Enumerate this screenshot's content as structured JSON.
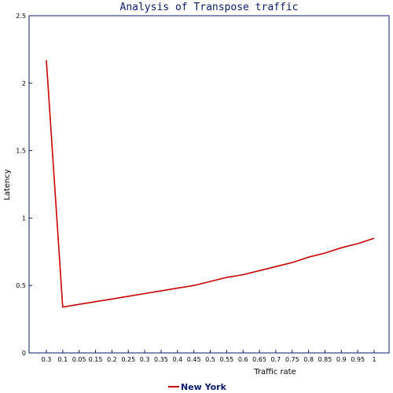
{
  "chart_data": {
    "type": "line",
    "title": "Analysis of Transpose traffic",
    "xlabel": "Traffic rate",
    "ylabel": "Latency",
    "x_ticks": [
      "0.3",
      "0.1",
      "0.05",
      "0.15",
      "0.2",
      "0.25",
      "0.3",
      "0.35",
      "0.4",
      "0.45",
      "0.5",
      "0.55",
      "0.6",
      "0.65",
      "0.7",
      "0.75",
      "0.8",
      "0.85",
      "0.9",
      "0.95",
      "1"
    ],
    "y_ticks": [
      "0",
      "0.5",
      "1",
      "1.5",
      "2",
      "2.5"
    ],
    "ylim": [
      0,
      2.5
    ],
    "grid": false,
    "legend_position": "bottom",
    "series": [
      {
        "name": "New York",
        "color": "#cc0000",
        "values": [
          2.17,
          0.34,
          0.36,
          0.38,
          0.4,
          0.42,
          0.44,
          0.46,
          0.48,
          0.5,
          0.53,
          0.56,
          0.58,
          0.61,
          0.64,
          0.67,
          0.71,
          0.74,
          0.78,
          0.81,
          0.85
        ]
      }
    ]
  }
}
